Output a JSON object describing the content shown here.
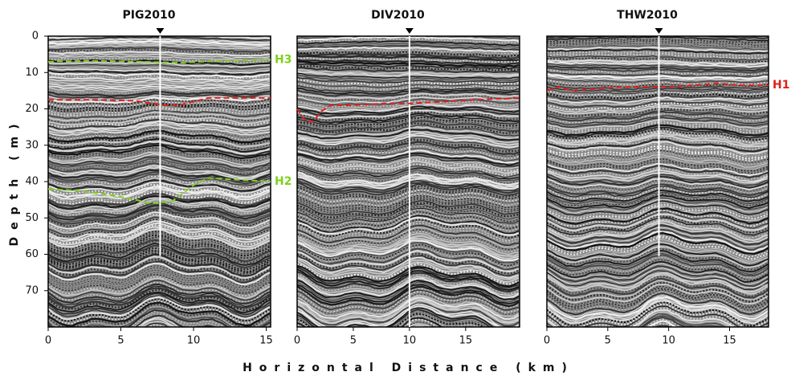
{
  "chart_data": [
    {
      "type": "radargram",
      "title": "PIG2010",
      "ylabel": "Depth (m)",
      "xlim": [
        0,
        15.3
      ],
      "xticks": [
        0,
        5,
        10,
        15
      ],
      "ylim": [
        80,
        0
      ],
      "yticks": [
        0,
        10,
        20,
        30,
        40,
        50,
        60,
        70
      ],
      "trace_x": 7.7,
      "trace_depth": 60.5,
      "series": [
        {
          "name": "H3",
          "color": "#7fd11b",
          "x": [
            0,
            3,
            6,
            9,
            12,
            15.3
          ],
          "values": [
            7,
            6.8,
            7,
            7.3,
            6.8,
            6.5
          ]
        },
        {
          "color": "#e0201b",
          "x": [
            0,
            3,
            6,
            8,
            9,
            11,
            13,
            15.3
          ],
          "values": [
            17.5,
            17.5,
            17.8,
            19,
            19,
            17,
            17,
            17
          ]
        },
        {
          "name": "H2",
          "color": "#7fd11b",
          "x": [
            0,
            2,
            4,
            6,
            7,
            8.5,
            10,
            11,
            13,
            15.3
          ],
          "values": [
            42,
            42.5,
            43.5,
            45,
            46,
            45.5,
            41,
            39,
            39.5,
            40
          ]
        }
      ]
    },
    {
      "type": "radargram",
      "title": "DIV2010",
      "xlabel": "Horizontal Distance (km)",
      "xlim": [
        0,
        19.8
      ],
      "xticks": [
        0,
        5,
        10,
        15
      ],
      "ylim": [
        80,
        0
      ],
      "trace_x": 10,
      "trace_depth": 80,
      "series": [
        {
          "color": "#e0201b",
          "x": [
            0,
            0.5,
            1,
            1.5,
            2,
            3,
            5,
            8,
            10,
            13,
            16,
            19.8
          ],
          "values": [
            20,
            22.5,
            23.5,
            23.5,
            21,
            19,
            19,
            18.5,
            18.5,
            18,
            17.5,
            17
          ]
        }
      ]
    },
    {
      "type": "radargram",
      "title": "THW2010",
      "xlim": [
        0,
        18.2
      ],
      "xticks": [
        0,
        5,
        10,
        15
      ],
      "ylim": [
        80,
        0
      ],
      "trace_x": 9.2,
      "trace_depth": 60.5,
      "series": [
        {
          "name": "H1",
          "color": "#e0201b",
          "x": [
            0,
            1,
            2,
            4,
            6,
            8,
            10,
            12,
            14,
            16,
            18.2
          ],
          "values": [
            15,
            14,
            15,
            14.5,
            14,
            14,
            14,
            13.5,
            13,
            13.5,
            13.5
          ]
        }
      ]
    }
  ]
}
